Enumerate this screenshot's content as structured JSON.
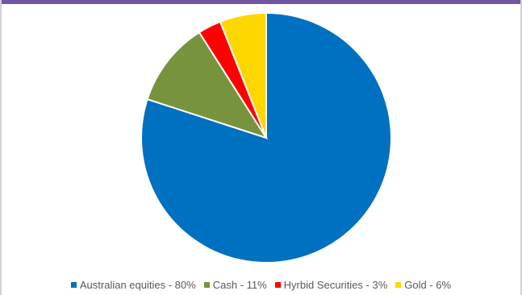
{
  "chart_data": {
    "type": "pie",
    "title": "",
    "start_angle_deg": 0,
    "direction": "clockwise",
    "slices": [
      {
        "label": "Australian equities - 80%",
        "value": 80,
        "color": "#0070c0"
      },
      {
        "label": "Cash - 11%",
        "value": 11,
        "color": "#77933c"
      },
      {
        "label": "Hyrbid Securities - 3%",
        "value": 3,
        "color": "#ff0000"
      },
      {
        "label": "Gold - 6%",
        "value": 6,
        "color": "#ffd700"
      }
    ],
    "legend_position": "bottom"
  },
  "colors": {
    "header_bar": "#6f55a2"
  }
}
